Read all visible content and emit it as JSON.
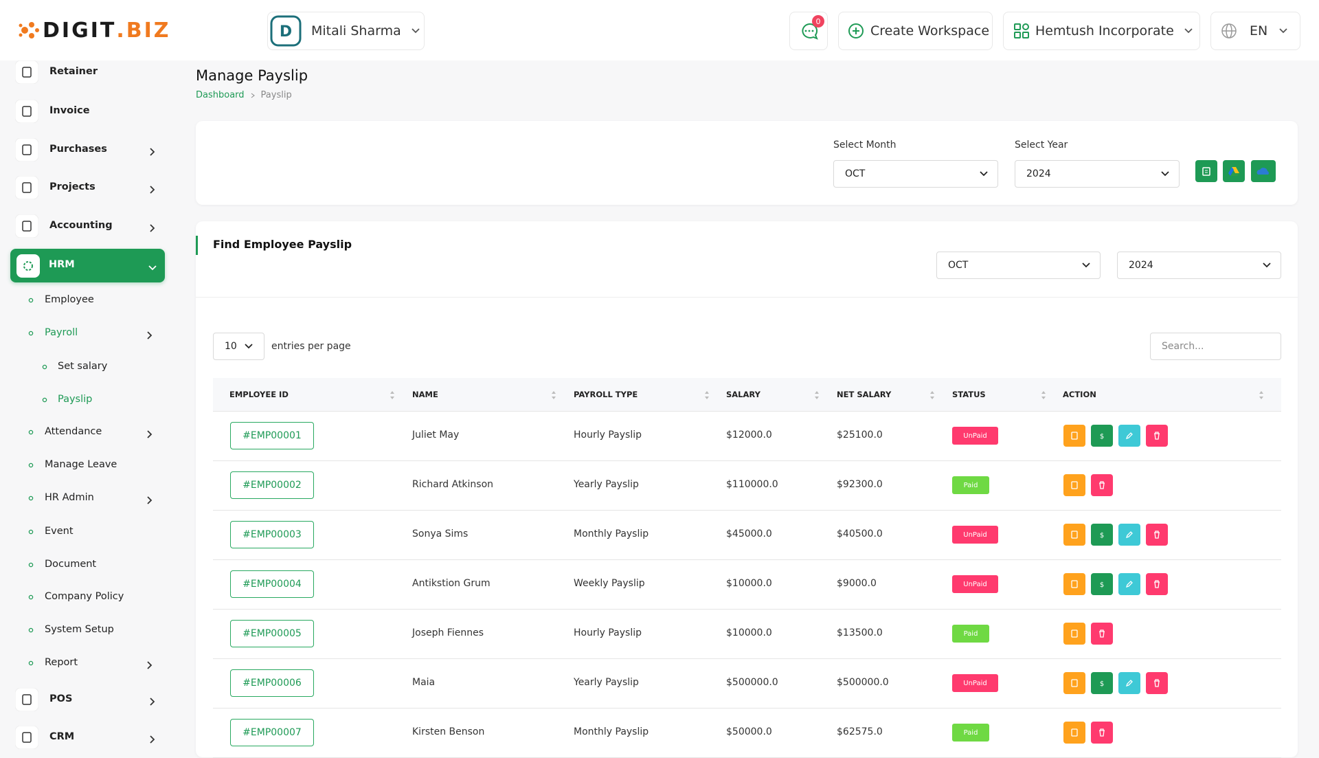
{
  "header": {
    "logo_main": "DIGIT",
    "logo_accent": ".BIZ",
    "user": "Mitali Sharma",
    "notifications": 0,
    "create_workspace": "Create Workspace",
    "workspace": "Hemtush Incorporate",
    "language": "EN"
  },
  "sidebar": {
    "items": [
      "Retainer",
      "Invoice",
      "Purchases",
      "Projects",
      "Accounting",
      "HRM",
      "Employee",
      "Payroll",
      "Set salary",
      "Payslip",
      "Attendance",
      "Manage Leave",
      "HR Admin",
      "Event",
      "Document",
      "Company Policy",
      "System Setup",
      "Report",
      "POS",
      "CRM"
    ]
  },
  "page": {
    "title": "Manage Payslip",
    "breadcrumb": [
      "Dashboard",
      "Payslip"
    ]
  },
  "filter": {
    "month_label": "Select Month",
    "month": "OCT",
    "year_label": "Select Year",
    "year": 2024
  },
  "find": {
    "title": "Find Employee Payslip",
    "month": "OCT",
    "year": 2024,
    "page_size": 10,
    "page_size_label": "entries per page",
    "search_placeholder": "Search..."
  },
  "table": {
    "columns": [
      "EMPLOYEE ID",
      "NAME",
      "PAYROLL TYPE",
      "SALARY",
      "NET SALARY",
      "STATUS",
      "ACTION"
    ],
    "rows": [
      [
        "#EMP00001",
        "Juliet May",
        "Hourly Payslip",
        "$12000.0",
        "$25100.0",
        "UnPaid"
      ],
      [
        "#EMP00002",
        "Richard Atkinson",
        "Yearly Payslip",
        "$110000.0",
        "$92300.0",
        "Paid"
      ],
      [
        "#EMP00003",
        "Sonya Sims",
        "Monthly Payslip",
        "$45000.0",
        "$40500.0",
        "UnPaid"
      ],
      [
        "#EMP00004",
        "Antikstion Grum",
        "Weekly Payslip",
        "$10000.0",
        "$9000.0",
        "UnPaid"
      ],
      [
        "#EMP00005",
        "Joseph Fiennes",
        "Hourly Payslip",
        "$10000.0",
        "$13500.0",
        "Paid"
      ],
      [
        "#EMP00006",
        "Maia",
        "Yearly Payslip",
        "$500000.0",
        "$500000.0",
        "UnPaid"
      ],
      [
        "#EMP00007",
        "Kirsten Benson",
        "Monthly Payslip",
        "$50000.0",
        "$62575.0",
        "Paid"
      ]
    ]
  }
}
